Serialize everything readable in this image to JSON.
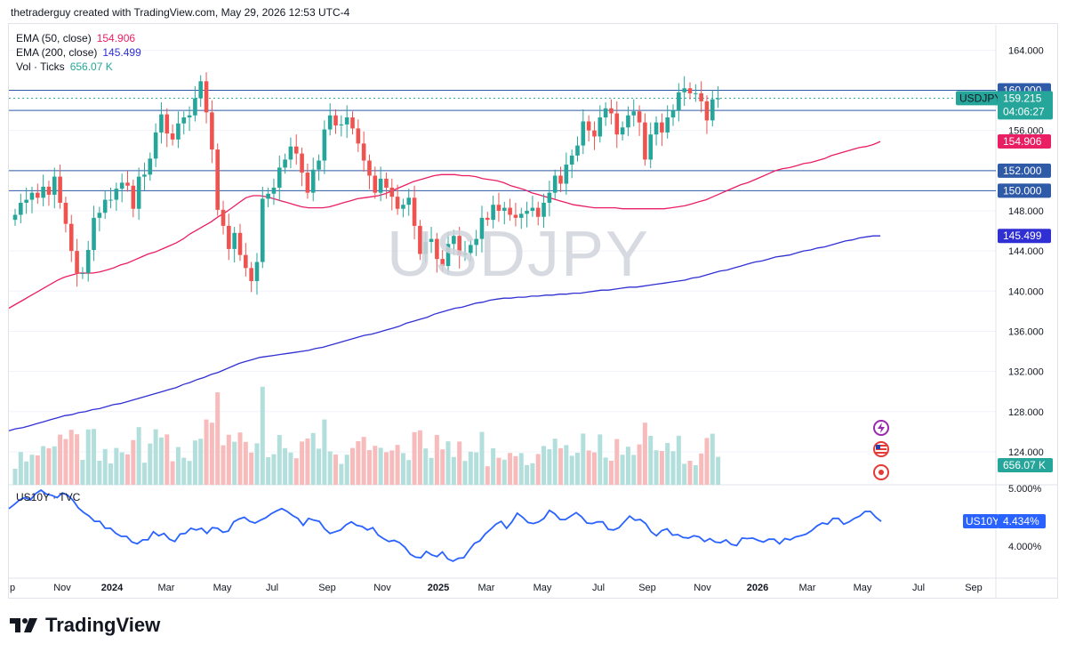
{
  "header": {
    "text": "thetraderguy created with TradingView.com, May 29, 2026 12:53 UTC-4"
  },
  "watermark": "USDJPY",
  "brand": "TradingView",
  "legend": {
    "ema50": {
      "label": "EMA (50, close)",
      "value": "154.906",
      "color": "#e91e63"
    },
    "ema200": {
      "label": "EMA (200, close)",
      "value": "145.499",
      "color": "#2f2fd4"
    },
    "vol": {
      "label": "Vol · Ticks",
      "value": "656.07 K",
      "color": "#26a69a"
    }
  },
  "lower_pane": {
    "title": "US10Y · TVC"
  },
  "colors": {
    "up": "#26a69a",
    "down": "#ef5350",
    "vol_up": "#b2dfdb",
    "vol_down": "#f8bbbb",
    "hline": "#2f5aa8",
    "us10y": "#2962ff",
    "grid": "#f0f3fa"
  },
  "chart_data": {
    "type": "candlestick",
    "symbol": "USDJPY",
    "interval": "weekly",
    "ylim": [
      124,
      167
    ],
    "y_ticks": [
      "164.000",
      "160.000",
      "156.000",
      "152.000",
      "148.000",
      "144.000",
      "140.000",
      "136.000",
      "132.000",
      "128.000",
      "124.000"
    ],
    "x_ticks": [
      "p",
      "Nov",
      "2024",
      "Mar",
      "May",
      "Jul",
      "Sep",
      "Nov",
      "2025",
      "Mar",
      "May",
      "Jul",
      "Sep",
      "Nov",
      "2026",
      "Mar",
      "May",
      "Jul",
      "Sep"
    ],
    "horizontal_lines": [
      160,
      158,
      152,
      150
    ],
    "price_labels": [
      {
        "text": "160.000",
        "value": 160.0,
        "kind": "line"
      },
      {
        "text": "158.000",
        "value": 158.0,
        "kind": "line"
      },
      {
        "text": "154.906",
        "value": 154.906,
        "kind": "ema50"
      },
      {
        "text": "152.000",
        "value": 152.0,
        "kind": "line"
      },
      {
        "text": "150.000",
        "value": 150.0,
        "kind": "line"
      },
      {
        "text": "145.499",
        "value": 145.499,
        "kind": "ema200"
      }
    ],
    "last_price": {
      "symbol": "USDJPY",
      "value": "159.215",
      "countdown": "04:06:27"
    },
    "close": [
      147.6,
      148.8,
      149.1,
      149.8,
      149.3,
      150.4,
      149.6,
      151.4,
      148.8,
      146.7,
      144.0,
      141.8,
      141.8,
      144.1,
      147.3,
      147.8,
      149.1,
      149.1,
      150.2,
      150.8,
      150.5,
      148.2,
      151.4,
      151.6,
      153.2,
      155.8,
      157.6,
      155.7,
      155.1,
      156.7,
      157.3,
      157.5,
      159.2,
      160.9,
      157.8,
      154.1,
      148.1,
      146.5,
      144.2,
      145.8,
      143.6,
      142.3,
      141.0,
      142.9,
      149.2,
      149.7,
      150.3,
      152.3,
      153.1,
      154.4,
      153.7,
      151.8,
      149.8,
      152.1,
      153.0,
      156.1,
      157.5,
      156.5,
      156.6,
      157.3,
      156.2,
      154.7,
      153.0,
      151.5,
      149.8,
      151.2,
      150.3,
      149.4,
      148.2,
      148.6,
      149.3,
      146.5,
      143.7,
      144.9,
      145.2,
      143.2,
      142.5,
      144.7,
      145.5,
      143.6,
      143.8,
      144.6,
      145.2,
      147.3,
      147.1,
      148.6,
      148.0,
      148.3,
      147.6,
      147.3,
      147.7,
      148.0,
      148.3,
      147.4,
      148.8,
      149.8,
      151.5,
      150.7,
      152.6,
      153.5,
      154.5,
      156.9,
      156.0,
      155.4,
      157.3,
      158.2,
      157.7,
      155.6,
      156.3,
      157.5,
      157.9,
      156.8,
      153.1,
      155.6,
      156.8,
      155.8,
      157.3,
      158.0,
      159.8,
      160.2,
      159.7,
      159.7,
      158.9,
      157.0,
      159.1,
      159.2
    ],
    "ema50": [
      138.3,
      138.7,
      139.1,
      139.5,
      139.9,
      140.3,
      140.7,
      141.1,
      141.4,
      141.6,
      141.8,
      141.8,
      141.8,
      141.9,
      142.1,
      142.3,
      142.6,
      142.8,
      143.1,
      143.4,
      143.7,
      143.9,
      144.2,
      144.5,
      144.8,
      145.2,
      145.7,
      146.1,
      146.5,
      146.9,
      147.4,
      147.8,
      148.3,
      148.8,
      149.3,
      149.5,
      149.5,
      149.4,
      149.2,
      149.0,
      148.8,
      148.6,
      148.4,
      148.3,
      148.3,
      148.3,
      148.4,
      148.6,
      148.8,
      149.0,
      149.2,
      149.3,
      149.4,
      149.5,
      149.7,
      150.0,
      150.3,
      150.6,
      150.9,
      151.1,
      151.3,
      151.5,
      151.6,
      151.6,
      151.6,
      151.5,
      151.5,
      151.4,
      151.2,
      151.1,
      151.0,
      150.8,
      150.5,
      150.3,
      150.1,
      149.8,
      149.6,
      149.4,
      149.2,
      149.0,
      148.8,
      148.6,
      148.5,
      148.4,
      148.3,
      148.3,
      148.3,
      148.3,
      148.2,
      148.2,
      148.2,
      148.2,
      148.2,
      148.2,
      148.2,
      148.3,
      148.4,
      148.5,
      148.7,
      148.9,
      149.1,
      149.4,
      149.7,
      150.0,
      150.3,
      150.6,
      150.8,
      151.1,
      151.4,
      151.7,
      152.0,
      152.2,
      152.3,
      152.5,
      152.7,
      152.8,
      153.0,
      153.2,
      153.5,
      153.7,
      153.9,
      154.1,
      154.3,
      154.4,
      154.6,
      154.9
    ],
    "ema200": [
      126.1,
      126.3,
      126.4,
      126.6,
      126.8,
      127.0,
      127.2,
      127.4,
      127.6,
      127.7,
      127.9,
      128.0,
      128.2,
      128.3,
      128.5,
      128.7,
      128.8,
      129.0,
      129.2,
      129.4,
      129.6,
      129.8,
      130.0,
      130.2,
      130.4,
      130.7,
      130.9,
      131.2,
      131.4,
      131.7,
      131.9,
      132.2,
      132.5,
      132.8,
      133.0,
      133.2,
      133.4,
      133.5,
      133.6,
      133.7,
      133.8,
      133.9,
      134.0,
      134.1,
      134.3,
      134.4,
      134.6,
      134.8,
      135.0,
      135.2,
      135.4,
      135.6,
      135.7,
      135.9,
      136.1,
      136.3,
      136.5,
      136.8,
      137.0,
      137.2,
      137.4,
      137.7,
      137.9,
      138.1,
      138.3,
      138.4,
      138.6,
      138.8,
      138.9,
      139.1,
      139.2,
      139.3,
      139.3,
      139.4,
      139.4,
      139.5,
      139.5,
      139.6,
      139.6,
      139.7,
      139.7,
      139.8,
      139.8,
      139.9,
      140.0,
      140.1,
      140.1,
      140.2,
      140.3,
      140.4,
      140.4,
      140.5,
      140.6,
      140.7,
      140.8,
      140.9,
      141.0,
      141.1,
      141.3,
      141.4,
      141.6,
      141.8,
      142.0,
      142.1,
      142.3,
      142.5,
      142.7,
      142.9,
      143.0,
      143.2,
      143.4,
      143.5,
      143.6,
      143.8,
      144.0,
      144.1,
      144.3,
      144.4,
      144.6,
      144.8,
      145.0,
      145.1,
      145.3,
      145.4,
      145.5,
      145.5
    ],
    "volume_last": "656.07 K",
    "us10y": {
      "y_ticks": [
        "5.000%",
        "4.000%"
      ],
      "last": {
        "symbol": "US10Y",
        "value": "4.434%"
      },
      "values": [
        4.65,
        4.72,
        4.8,
        4.84,
        4.8,
        4.91,
        4.97,
        4.9,
        4.88,
        4.84,
        4.92,
        4.88,
        4.79,
        4.66,
        4.58,
        4.52,
        4.43,
        4.43,
        4.31,
        4.31,
        4.22,
        4.17,
        4.17,
        4.07,
        4.04,
        4.11,
        4.11,
        4.25,
        4.18,
        4.22,
        4.12,
        4.08,
        4.21,
        4.22,
        4.31,
        4.28,
        4.31,
        4.22,
        4.32,
        4.31,
        4.24,
        4.26,
        4.42,
        4.47,
        4.5,
        4.43,
        4.4,
        4.45,
        4.49,
        4.56,
        4.61,
        4.65,
        4.6,
        4.53,
        4.48,
        4.36,
        4.48,
        4.45,
        4.43,
        4.3,
        4.22,
        4.25,
        4.28,
        4.37,
        4.42,
        4.36,
        4.34,
        4.28,
        4.32,
        4.19,
        4.13,
        4.08,
        4.1,
        4.06,
        3.98,
        3.86,
        3.81,
        3.8,
        3.91,
        3.85,
        3.82,
        3.9,
        3.78,
        3.74,
        3.79,
        3.8,
        3.93,
        4.05,
        4.09,
        4.21,
        4.29,
        4.38,
        4.43,
        4.31,
        4.42,
        4.57,
        4.5,
        4.41,
        4.39,
        4.42,
        4.48,
        4.62,
        4.56,
        4.46,
        4.46,
        4.52,
        4.58,
        4.51,
        4.4,
        4.39,
        4.42,
        4.42,
        4.29,
        4.28,
        4.32,
        4.42,
        4.52,
        4.45,
        4.46,
        4.39,
        4.25,
        4.18,
        4.27,
        4.3,
        4.19,
        4.2,
        4.15,
        4.14,
        4.18,
        4.16,
        4.08,
        4.13,
        4.07,
        4.06,
        4.11,
        4.03,
        4.01,
        4.14,
        4.13,
        4.14,
        4.1,
        4.07,
        4.12,
        4.12,
        4.04,
        4.13,
        4.11,
        4.16,
        4.18,
        4.21,
        4.27,
        4.35,
        4.4,
        4.38,
        4.48,
        4.48,
        4.38,
        4.42,
        4.48,
        4.52,
        4.6,
        4.6,
        4.5,
        4.43
      ]
    }
  }
}
